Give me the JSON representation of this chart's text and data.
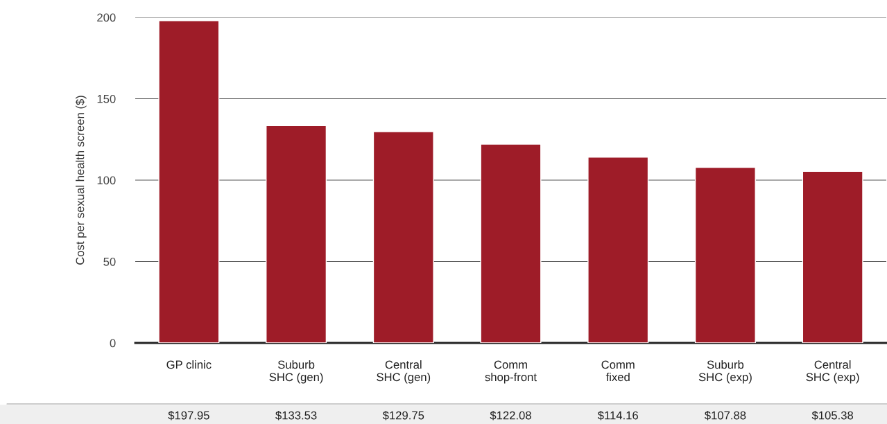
{
  "chart_data": {
    "type": "bar",
    "ylabel": "Cost per sexual health screen ($)",
    "categories": [
      "GP clinic",
      "Suburb\nSHC (gen)",
      "Central\nSHC (gen)",
      "Comm\nshop-front",
      "Comm\nfixed",
      "Suburb\nSHC (exp)",
      "Central\nSHC (exp)"
    ],
    "series": [
      {
        "color": "#9e1c28",
        "values": [
          197.95,
          133.53,
          129.75,
          122.08,
          114.16,
          107.88,
          105.38
        ],
        "value_labels": [
          "$197.95",
          "$133.53",
          "$129.75",
          "$122.08",
          "$114.16",
          "$107.88",
          "$105.38"
        ]
      }
    ],
    "ylim": [
      0,
      200
    ],
    "yticks": [
      0,
      50,
      100,
      150,
      200
    ],
    "grid": "y",
    "legend": false
  }
}
